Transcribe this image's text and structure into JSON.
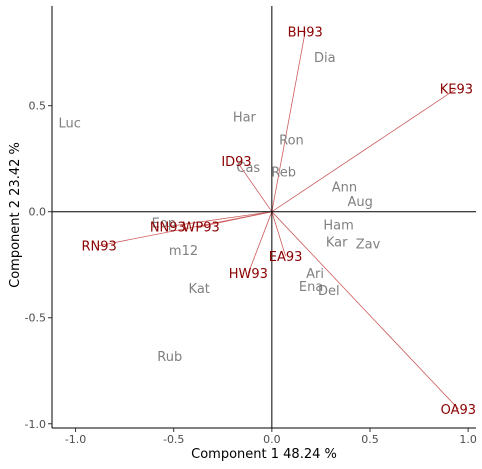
{
  "chart_data": {
    "type": "scatter",
    "subtype": "biplot",
    "xlabel": "Component 1 48.24 %",
    "ylabel": "Component 2 23.42 %",
    "xlim": [
      -1.12,
      1.04
    ],
    "ylim": [
      -1.02,
      0.97
    ],
    "xticks": [
      -1.0,
      -0.5,
      0.0,
      0.5,
      1.0
    ],
    "xtick_labels": [
      "-1.0",
      "-0.5",
      "0.0",
      "0.5",
      "1.0"
    ],
    "yticks": [
      -1.0,
      -0.5,
      0.0,
      0.5
    ],
    "ytick_labels": [
      "-1.0",
      "-0.5",
      "0.0",
      "0.5"
    ],
    "reference_lines": {
      "x": 0,
      "y": 0
    },
    "grid": false,
    "colors": {
      "observations": "#808080",
      "loadings": "#8b0000",
      "vectors": "#cd5c5c",
      "axes": "#000000"
    },
    "observations": [
      {
        "label": "Dia",
        "x": 0.27,
        "y": 0.73
      },
      {
        "label": "Luc",
        "x": -1.03,
        "y": 0.42
      },
      {
        "label": "Har",
        "x": -0.14,
        "y": 0.45
      },
      {
        "label": "Ron",
        "x": 0.1,
        "y": 0.34
      },
      {
        "label": "Cas",
        "x": -0.12,
        "y": 0.21
      },
      {
        "label": "Reb",
        "x": 0.06,
        "y": 0.19
      },
      {
        "label": "Ann",
        "x": 0.37,
        "y": 0.12
      },
      {
        "label": "Aug",
        "x": 0.45,
        "y": 0.05
      },
      {
        "label": "Ham",
        "x": 0.34,
        "y": -0.06
      },
      {
        "label": "Kar",
        "x": 0.33,
        "y": -0.14
      },
      {
        "label": "Zav",
        "x": 0.49,
        "y": -0.15
      },
      {
        "label": "m12",
        "x": -0.45,
        "y": -0.18
      },
      {
        "label": "Eop",
        "x": -0.55,
        "y": -0.05
      },
      {
        "label": "Ari",
        "x": 0.22,
        "y": -0.29
      },
      {
        "label": "Ena",
        "x": 0.2,
        "y": -0.35
      },
      {
        "label": "Del",
        "x": 0.29,
        "y": -0.37
      },
      {
        "label": "Kat",
        "x": -0.37,
        "y": -0.36
      },
      {
        "label": "Rub",
        "x": -0.52,
        "y": -0.68
      }
    ],
    "loadings": [
      {
        "label": "BH93",
        "x": 0.17,
        "y": 0.85
      },
      {
        "label": "KE93",
        "x": 0.94,
        "y": 0.58
      },
      {
        "label": "ID93",
        "x": -0.18,
        "y": 0.24
      },
      {
        "label": "NN93",
        "x": -0.53,
        "y": -0.07
      },
      {
        "label": "WP93",
        "x": -0.36,
        "y": -0.07
      },
      {
        "label": "RN93",
        "x": -0.88,
        "y": -0.16
      },
      {
        "label": "EA93",
        "x": 0.07,
        "y": -0.21
      },
      {
        "label": "HW93",
        "x": -0.12,
        "y": -0.29
      },
      {
        "label": "OA93",
        "x": 0.95,
        "y": -0.93
      }
    ]
  }
}
